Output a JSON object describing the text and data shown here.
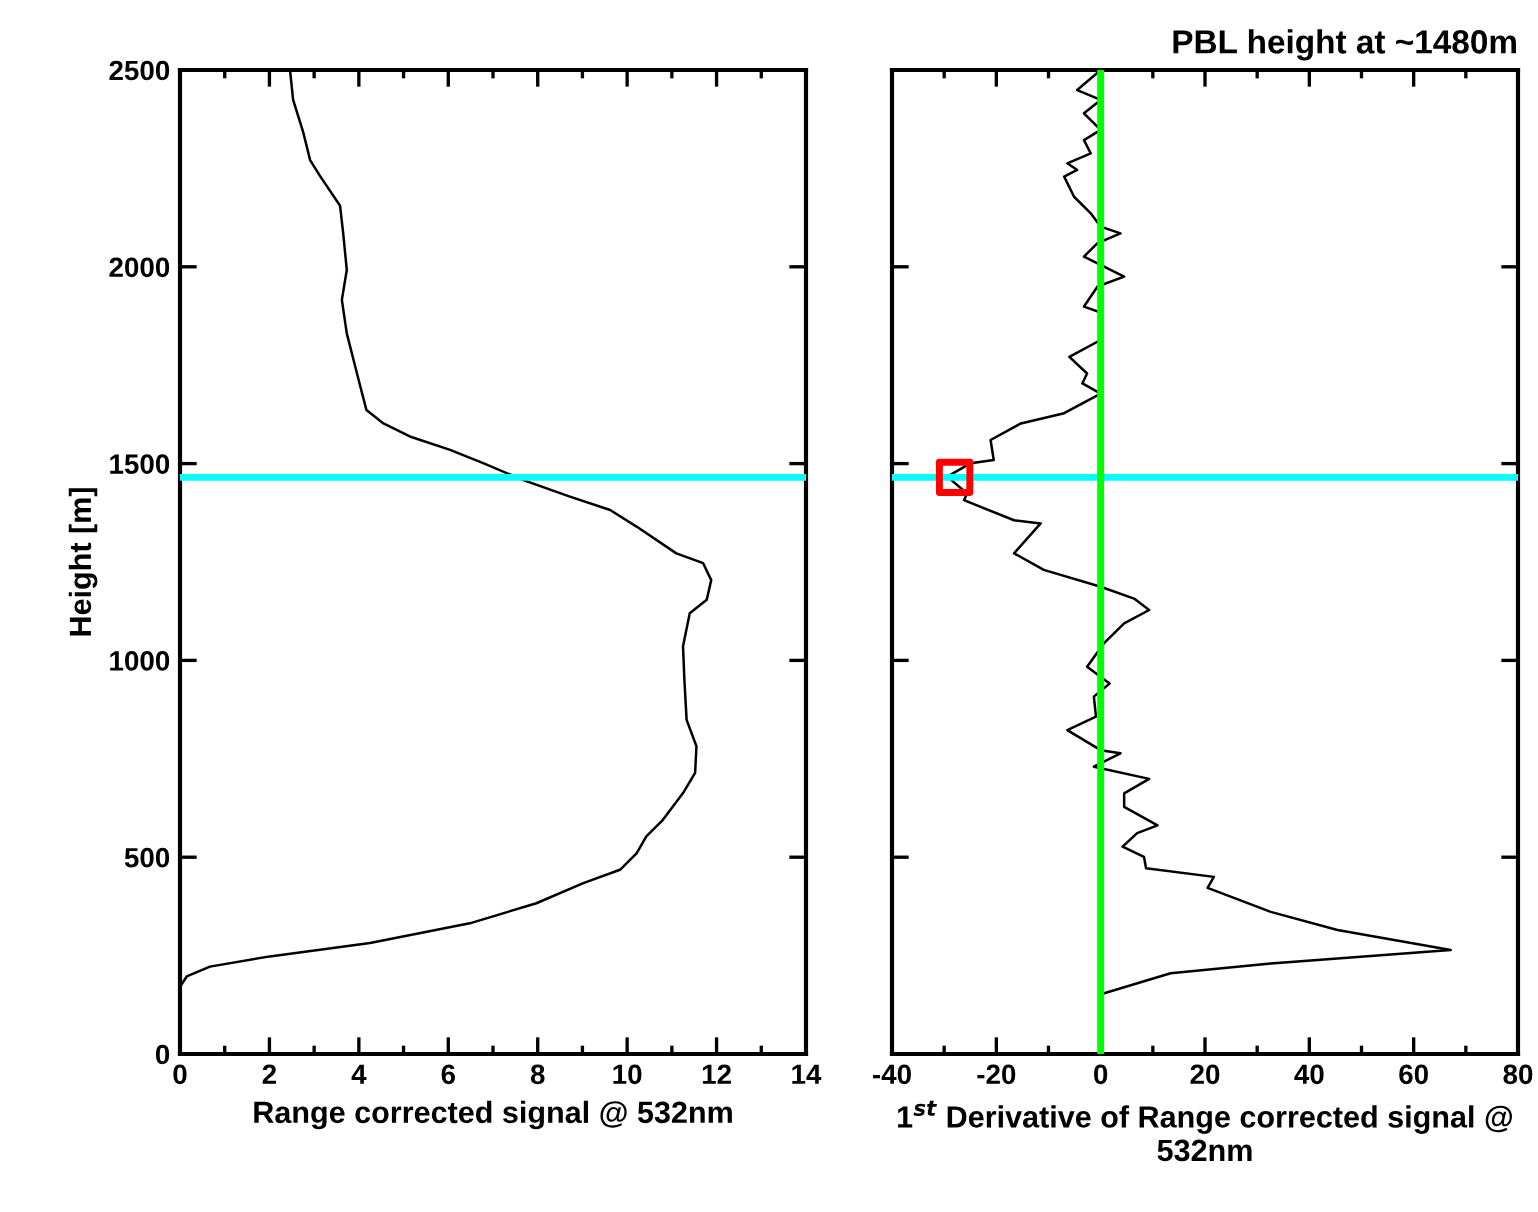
{
  "chart_data": [
    {
      "type": "line",
      "xlabel": "Range corrected signal @ 532nm",
      "ylabel": "Height [m]",
      "xlim": [
        0,
        14
      ],
      "xticks": [
        0,
        2,
        4,
        6,
        8,
        10,
        12,
        14
      ],
      "ylim": [
        0,
        2500
      ],
      "yticks": [
        0,
        500,
        1000,
        1500,
        2000,
        2500
      ],
      "grid": false,
      "legend": false,
      "series": [
        {
          "color": "#000000",
          "x": [
            2.46,
            2.53,
            2.76,
            2.91,
            3.13,
            3.58,
            3.65,
            3.73,
            3.62,
            3.73,
            3.88,
            4.03,
            4.17,
            4.55,
            5.14,
            6.04,
            6.78,
            7.68,
            8.72,
            9.62,
            10.21,
            11.1,
            11.7,
            11.88,
            11.78,
            11.4,
            11.25,
            11.28,
            11.33,
            11.55,
            11.52,
            11.25,
            10.8,
            10.43,
            10.21,
            9.84,
            9.02,
            7.97,
            6.48,
            4.25,
            2.01,
            0.67,
            0.15,
            0.0
          ],
          "values": [
            2500,
            2424,
            2340,
            2271,
            2231,
            2155,
            2085,
            1992,
            1916,
            1831,
            1764,
            1697,
            1636,
            1602,
            1569,
            1535,
            1501,
            1458,
            1416,
            1382,
            1340,
            1272,
            1247,
            1204,
            1154,
            1120,
            1036,
            951,
            849,
            782,
            714,
            663,
            595,
            553,
            510,
            468,
            434,
            383,
            332,
            282,
            248,
            222,
            197,
            171
          ]
        }
      ],
      "ref_lines": [
        {
          "axis": "y",
          "value": 1465,
          "color": "#00ffff"
        }
      ]
    },
    {
      "type": "line",
      "title": "PBL height at ~1480m",
      "xlabel": "1$^{st}$ Derivative of Range corrected signal @ 532nm",
      "xlim": [
        -40,
        80
      ],
      "xticks": [
        -40,
        -20,
        0,
        20,
        40,
        60,
        80
      ],
      "ylim": [
        0,
        2500
      ],
      "yticks": [
        0,
        500,
        1000,
        1500,
        2000,
        2500
      ],
      "tick_labels": "x",
      "grid": false,
      "legend": false,
      "series": [
        {
          "color": "#000000",
          "x": [
            0,
            -4.5,
            0,
            -3.2,
            0,
            -3.2,
            -1.9,
            -6.4,
            -4.5,
            -7.0,
            -5.1,
            -1.9,
            0,
            3.8,
            -0.6,
            -3.2,
            4.5,
            -0.6,
            -3.2,
            0.4,
            0,
            -6.0,
            -2.6,
            -3.5,
            0,
            -7.0,
            -15.3,
            -21.1,
            -20.5,
            -24.9,
            -29.4,
            -25.6,
            -26.2,
            -16.6,
            -11.5,
            -16.6,
            -10.9,
            0,
            6.4,
            9.3,
            4.5,
            0.6,
            -2.6,
            1.7,
            -1.3,
            -0.9,
            -6.4,
            0,
            3.8,
            -1.3,
            9.3,
            4.5,
            4.5,
            10.9,
            7.0,
            4.2,
            8.3,
            8.7,
            21.7,
            20.5,
            32.6,
            45.4,
            67.1,
            32.6,
            13.4,
            0.6
          ],
          "values": [
            2500,
            2449,
            2424,
            2390,
            2348,
            2322,
            2288,
            2263,
            2246,
            2229,
            2178,
            2136,
            2102,
            2085,
            2060,
            2026,
            1975,
            1950,
            1899,
            1882,
            1814,
            1771,
            1729,
            1704,
            1678,
            1628,
            1602,
            1560,
            1509,
            1501,
            1467,
            1424,
            1407,
            1356,
            1348,
            1272,
            1230,
            1187,
            1157,
            1128,
            1094,
            1043,
            984,
            941,
            908,
            857,
            823,
            772,
            764,
            730,
            699,
            662,
            628,
            581,
            561,
            527,
            501,
            472,
            450,
            422,
            361,
            315,
            264,
            230,
            205,
            154
          ]
        },
        {
          "type": "scatter",
          "marker": "square",
          "color": "#ff0000",
          "x": [
            -28
          ],
          "values": [
            1465
          ]
        }
      ],
      "ref_lines": [
        {
          "axis": "y",
          "value": 1465,
          "color": "#00ffff"
        },
        {
          "axis": "x",
          "value": 0,
          "color": "#00ff00"
        }
      ]
    }
  ]
}
